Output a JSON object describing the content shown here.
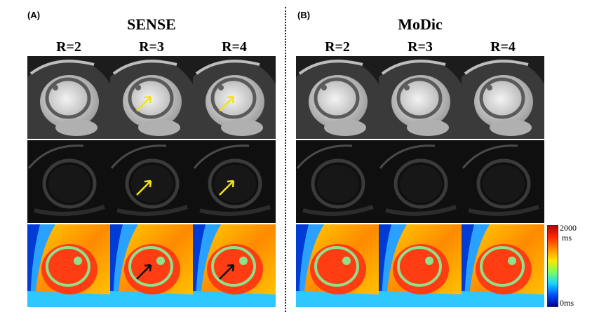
{
  "panels": [
    {
      "tag": "(A)",
      "title": "SENSE",
      "columns": [
        "R=2",
        "R=3",
        "R=4"
      ],
      "row_count": 3,
      "arrows": [
        {
          "row": 0,
          "col": 1,
          "color": "#f2e21c"
        },
        {
          "row": 0,
          "col": 2,
          "color": "#f2e21c"
        },
        {
          "row": 1,
          "col": 1,
          "color": "#f2e21c"
        },
        {
          "row": 1,
          "col": 2,
          "color": "#f2e21c"
        },
        {
          "row": 2,
          "col": 1,
          "color": "#111111"
        },
        {
          "row": 2,
          "col": 2,
          "color": "#111111"
        }
      ]
    },
    {
      "tag": "(B)",
      "title": "MoDic",
      "columns": [
        "R=2",
        "R=3",
        "R=4"
      ],
      "row_count": 3,
      "arrows": []
    }
  ],
  "colorbar": {
    "max_value": "2000",
    "max_unit": "ms",
    "min_label": "0ms",
    "colors": [
      "#c00000",
      "#ff2a00",
      "#ff8a00",
      "#ffe600",
      "#7dff5a",
      "#18d6ff",
      "#0050ff",
      "#00008c"
    ]
  },
  "row_styles": [
    "bright-magnitude",
    "dark-magnitude",
    "t1-map"
  ]
}
